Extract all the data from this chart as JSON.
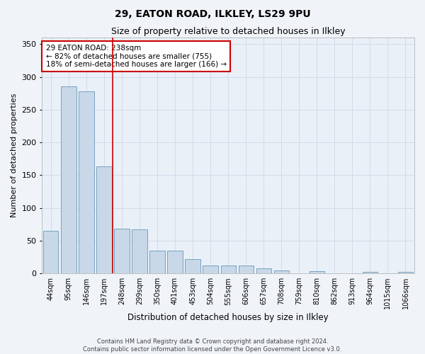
{
  "title1": "29, EATON ROAD, ILKLEY, LS29 9PU",
  "title2": "Size of property relative to detached houses in Ilkley",
  "xlabel": "Distribution of detached houses by size in Ilkley",
  "ylabel": "Number of detached properties",
  "footer1": "Contains HM Land Registry data © Crown copyright and database right 2024.",
  "footer2": "Contains public sector information licensed under the Open Government Licence v3.0.",
  "annotation_line1": "29 EATON ROAD: 238sqm",
  "annotation_line2": "← 82% of detached houses are smaller (755)",
  "annotation_line3": "18% of semi-detached houses are larger (166) →",
  "bar_color": "#c8d8e8",
  "bar_edge_color": "#6898b8",
  "vline_color": "#cc0000",
  "vline_x_idx": 4,
  "categories": [
    "44sqm",
    "95sqm",
    "146sqm",
    "197sqm",
    "248sqm",
    "299sqm",
    "350sqm",
    "401sqm",
    "453sqm",
    "504sqm",
    "555sqm",
    "606sqm",
    "657sqm",
    "708sqm",
    "759sqm",
    "810sqm",
    "862sqm",
    "913sqm",
    "964sqm",
    "1015sqm",
    "1066sqm"
  ],
  "values": [
    65,
    285,
    278,
    163,
    68,
    67,
    35,
    35,
    22,
    12,
    12,
    12,
    8,
    5,
    0,
    3,
    0,
    0,
    2,
    0,
    2
  ],
  "ylim": [
    0,
    360
  ],
  "yticks": [
    0,
    50,
    100,
    150,
    200,
    250,
    300,
    350
  ],
  "annotation_box_facecolor": "#ffffff",
  "annotation_box_edgecolor": "#cc0000",
  "grid_color": "#d0d8e8",
  "bg_color": "#eaf0f8",
  "fig_facecolor": "#f0f4f8",
  "title1_fontsize": 10,
  "title2_fontsize": 9,
  "xlabel_fontsize": 8.5,
  "ylabel_fontsize": 8,
  "xtick_fontsize": 7,
  "ytick_fontsize": 8,
  "footer_fontsize": 6,
  "ann_fontsize": 7.5
}
